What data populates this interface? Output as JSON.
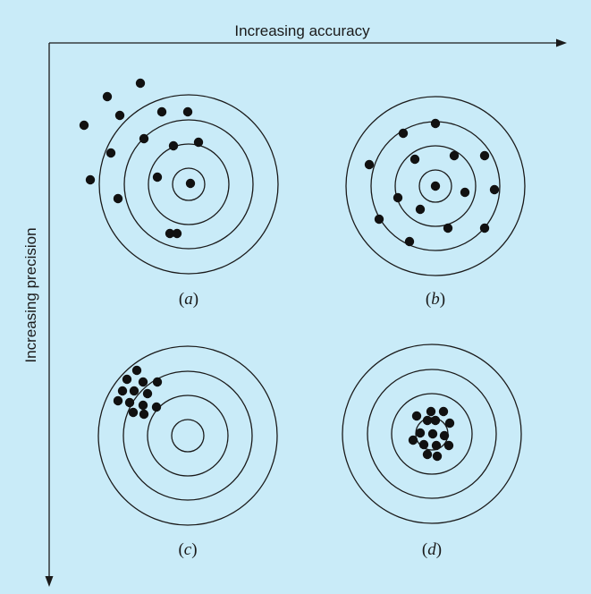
{
  "axes": {
    "x_label": "Increasing accuracy",
    "y_label": "Increasing precision"
  },
  "colors": {
    "background": "#c9ebf8",
    "ink": "#1a1a1a",
    "dot": "#111111"
  },
  "panels": [
    {
      "id": "a",
      "open": "(",
      "letter": "a",
      "close": ")",
      "description": "inaccurate and imprecise"
    },
    {
      "id": "b",
      "open": "(",
      "letter": "b",
      "close": ")",
      "description": "accurate and imprecise"
    },
    {
      "id": "c",
      "open": "(",
      "letter": "c",
      "close": ")",
      "description": "inaccurate and precise"
    },
    {
      "id": "d",
      "open": "(",
      "letter": "d",
      "close": ")",
      "description": "accurate and precise"
    }
  ]
}
